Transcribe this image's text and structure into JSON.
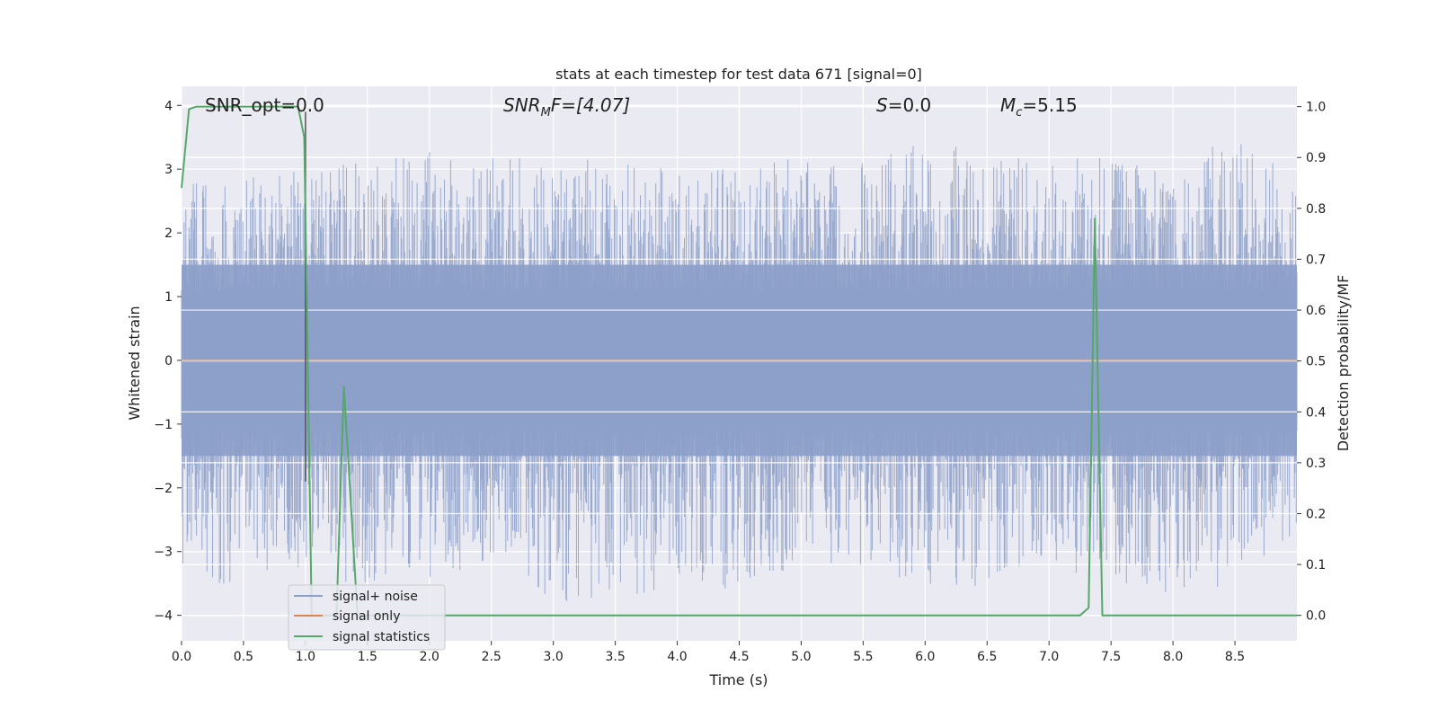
{
  "chart_data": {
    "type": "line",
    "title": "stats at each timestep for test data 671 [signal=0]",
    "xlabel": "Time (s)",
    "ylabel_left": "Whitened strain",
    "ylabel_right": "Detection probability/MF",
    "xlim": [
      0.0,
      9.0
    ],
    "ylim_left": [
      -4.4,
      4.3
    ],
    "ylim_right": [
      -0.05,
      1.04
    ],
    "x_ticks": [
      "0.0",
      "0.5",
      "1.0",
      "1.5",
      "2.0",
      "2.5",
      "3.0",
      "3.5",
      "4.0",
      "4.5",
      "5.0",
      "5.5",
      "6.0",
      "6.5",
      "7.0",
      "7.5",
      "8.0",
      "8.5"
    ],
    "y_ticks_left": [
      "4",
      "3",
      "2",
      "1",
      "0",
      "−1",
      "−2",
      "−3",
      "−4"
    ],
    "y_ticks_right": [
      "1.0",
      "0.9",
      "0.8",
      "0.7",
      "0.6",
      "0.5",
      "0.4",
      "0.3",
      "0.2",
      "0.1",
      "0.0"
    ],
    "grid": true,
    "legend_position": "lower-left",
    "annotations": {
      "snr_opt": "SNR_opt=0.0",
      "snr_mf_main": "SNR",
      "snr_mf_sub": "M",
      "snr_mf_rest": "F=[4.07]",
      "s_main": "S",
      "s_rest": "=0.0",
      "mc_main": "M",
      "mc_sub": "c",
      "mc_rest": "=5.15"
    },
    "marker_line_x": 1.0,
    "series": [
      {
        "name": "signal+ noise",
        "axis": "left",
        "color": "#8c9fc9",
        "description_values": "whitened noise, amplitude roughly between -3.9 and 3.5",
        "envelope_x": [
          0.0,
          0.5,
          1.0,
          1.5,
          2.0,
          2.5,
          3.0,
          3.5,
          4.0,
          4.5,
          5.0,
          5.5,
          6.0,
          6.5,
          7.0,
          7.5,
          8.0,
          8.5,
          9.0
        ],
        "envelope_max": [
          2.8,
          2.9,
          3.0,
          3.3,
          3.3,
          3.2,
          3.2,
          3.1,
          3.1,
          3.0,
          3.2,
          3.1,
          3.5,
          3.3,
          3.1,
          3.3,
          3.0,
          3.6,
          2.8
        ],
        "envelope_min": [
          -3.6,
          -3.5,
          -3.3,
          -3.6,
          -3.4,
          -3.2,
          -3.9,
          -3.8,
          -3.6,
          -3.6,
          -3.4,
          -3.3,
          -3.5,
          -3.6,
          -3.2,
          -3.5,
          -3.8,
          -3.5,
          -2.7
        ]
      },
      {
        "name": "signal only",
        "axis": "left",
        "color": "#dd8452",
        "x": [
          0.0,
          9.0
        ],
        "y": [
          0.0,
          0.0
        ]
      },
      {
        "name": "signal statistics",
        "axis": "right",
        "color": "#55a868",
        "x": [
          0.0,
          0.06,
          0.12,
          0.94,
          0.99,
          1.05,
          1.25,
          1.31,
          1.42,
          1.5,
          7.25,
          7.32,
          7.37,
          7.43,
          9.0
        ],
        "y": [
          0.84,
          0.995,
          1.0,
          1.0,
          0.94,
          0.0,
          0.0,
          0.45,
          0.0,
          0.0,
          0.0,
          0.015,
          0.78,
          0.0,
          0.0
        ]
      }
    ]
  }
}
